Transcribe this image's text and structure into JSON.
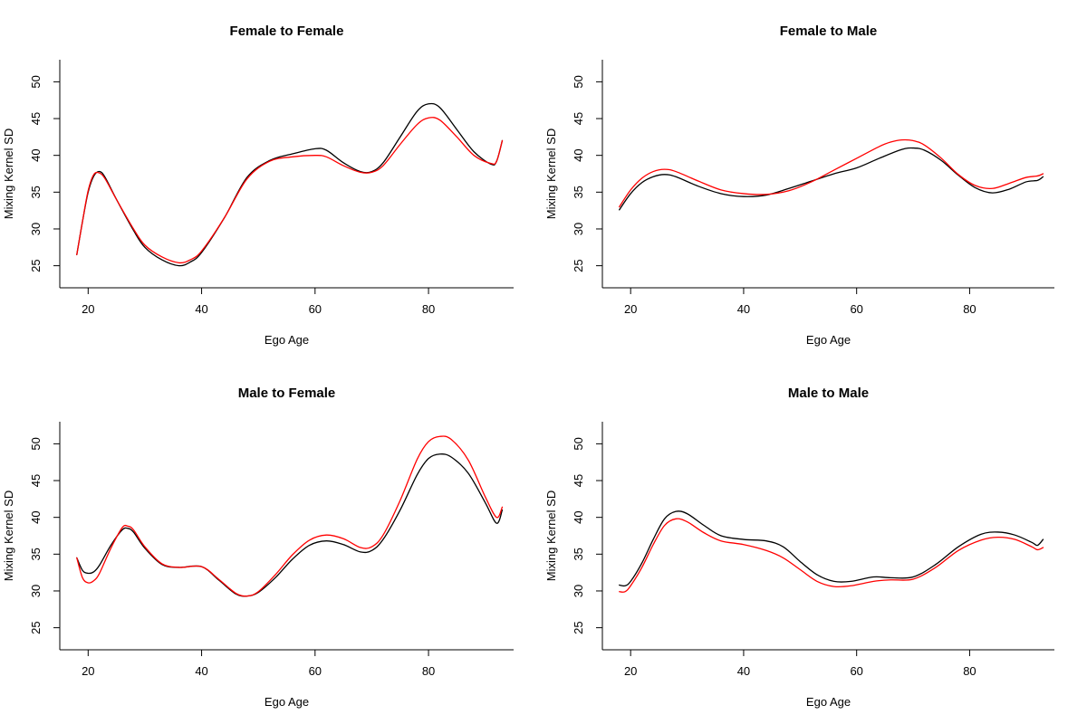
{
  "chart_data": [
    {
      "type": "line",
      "title": "Female to Female",
      "xlabel": "Ego Age",
      "ylabel": "Mixing Kernel SD",
      "xlim": [
        15,
        95
      ],
      "ylim": [
        22,
        53
      ],
      "xticks": [
        20,
        40,
        60,
        80
      ],
      "yticks": [
        25,
        30,
        35,
        40,
        45,
        50
      ],
      "series": [
        {
          "color": "#000000",
          "x": [
            18,
            19,
            20,
            21,
            22,
            23,
            25,
            28,
            30,
            33,
            36,
            38,
            40,
            44,
            48,
            52,
            56,
            60,
            62,
            65,
            68,
            70,
            72,
            75,
            78,
            80,
            82,
            85,
            88,
            91,
            92,
            93
          ],
          "y": [
            26.5,
            31,
            35,
            37.2,
            37.8,
            37.0,
            34.0,
            29.8,
            27.5,
            25.8,
            25.0,
            25.5,
            26.8,
            31.5,
            37.0,
            39.3,
            40.2,
            40.9,
            40.7,
            39.0,
            37.8,
            37.8,
            39.0,
            42.5,
            46.0,
            47.0,
            46.5,
            43.5,
            40.5,
            38.8,
            39.2,
            42.0
          ]
        },
        {
          "color": "#ff0000",
          "x": [
            18,
            19,
            20,
            21,
            22,
            23,
            25,
            28,
            30,
            33,
            36,
            38,
            40,
            44,
            48,
            52,
            56,
            60,
            62,
            65,
            68,
            70,
            72,
            75,
            78,
            80,
            82,
            85,
            88,
            91,
            92,
            93
          ],
          "y": [
            26.5,
            31,
            35.2,
            37.4,
            37.6,
            36.8,
            34.0,
            30.0,
            27.8,
            26.2,
            25.4,
            25.8,
            27.0,
            31.5,
            36.8,
            39.2,
            39.8,
            40.0,
            39.8,
            38.6,
            37.7,
            37.7,
            38.6,
            41.5,
            44.2,
            45.1,
            44.8,
            42.5,
            40.0,
            38.9,
            39.2,
            42.0
          ]
        }
      ]
    },
    {
      "type": "line",
      "title": "Female to Male",
      "xlabel": "Ego Age",
      "ylabel": "Mixing Kernel SD",
      "xlim": [
        15,
        95
      ],
      "ylim": [
        22,
        53
      ],
      "xticks": [
        20,
        40,
        60,
        80
      ],
      "yticks": [
        25,
        30,
        35,
        40,
        45,
        50
      ],
      "series": [
        {
          "color": "#000000",
          "x": [
            18,
            20,
            22,
            24,
            26,
            28,
            32,
            36,
            40,
            44,
            48,
            52,
            56,
            60,
            64,
            68,
            70,
            72,
            75,
            78,
            81,
            84,
            87,
            90,
            92,
            93
          ],
          "y": [
            32.6,
            34.8,
            36.3,
            37.1,
            37.4,
            37.1,
            35.8,
            34.8,
            34.4,
            34.6,
            35.5,
            36.5,
            37.5,
            38.3,
            39.6,
            40.8,
            41.0,
            40.7,
            39.3,
            37.3,
            35.6,
            34.9,
            35.4,
            36.4,
            36.6,
            37.1
          ]
        },
        {
          "color": "#ff0000",
          "x": [
            18,
            20,
            22,
            24,
            26,
            28,
            32,
            36,
            40,
            44,
            48,
            52,
            56,
            60,
            64,
            66,
            68,
            70,
            72,
            75,
            78,
            81,
            84,
            87,
            90,
            92,
            93
          ],
          "y": [
            33.0,
            35.3,
            36.9,
            37.8,
            38.1,
            37.8,
            36.5,
            35.3,
            34.8,
            34.7,
            35.2,
            36.4,
            38.0,
            39.6,
            41.2,
            41.8,
            42.1,
            42.0,
            41.4,
            39.6,
            37.4,
            35.9,
            35.5,
            36.2,
            37.0,
            37.2,
            37.5
          ]
        }
      ]
    },
    {
      "type": "line",
      "title": "Male to Female",
      "xlabel": "Ego Age",
      "ylabel": "Mixing Kernel SD",
      "xlim": [
        15,
        95
      ],
      "ylim": [
        22,
        53
      ],
      "xticks": [
        20,
        40,
        60,
        80
      ],
      "yticks": [
        25,
        30,
        35,
        40,
        45,
        50
      ],
      "series": [
        {
          "color": "#000000",
          "x": [
            18,
            19,
            20,
            21,
            22,
            24,
            26,
            27,
            28,
            30,
            33,
            36,
            40,
            43,
            46,
            48,
            50,
            53,
            56,
            59,
            62,
            65,
            68,
            70,
            72,
            75,
            78,
            80,
            82,
            84,
            87,
            90,
            92,
            93
          ],
          "y": [
            34.5,
            32.8,
            32.4,
            32.6,
            33.5,
            36.2,
            38.3,
            38.5,
            38.0,
            35.8,
            33.6,
            33.2,
            33.3,
            31.5,
            29.6,
            29.3,
            29.8,
            31.8,
            34.3,
            36.2,
            36.8,
            36.3,
            35.3,
            35.5,
            37.0,
            41.0,
            45.8,
            48.0,
            48.6,
            48.2,
            46.0,
            42.0,
            39.2,
            41.0
          ]
        },
        {
          "color": "#ff0000",
          "x": [
            18,
            19,
            20,
            21,
            22,
            24,
            26,
            27,
            28,
            30,
            33,
            36,
            40,
            43,
            46,
            48,
            50,
            53,
            56,
            59,
            62,
            65,
            68,
            70,
            72,
            75,
            78,
            80,
            82,
            84,
            87,
            90,
            92,
            93
          ],
          "y": [
            34.5,
            31.8,
            31.1,
            31.4,
            32.4,
            35.8,
            38.6,
            38.8,
            38.3,
            36.0,
            33.7,
            33.2,
            33.3,
            31.6,
            29.7,
            29.3,
            29.9,
            32.2,
            34.9,
            36.9,
            37.6,
            37.1,
            35.9,
            36.0,
            37.6,
            42.3,
            47.9,
            50.3,
            51.0,
            50.6,
            47.8,
            42.8,
            40.0,
            41.4
          ]
        }
      ]
    },
    {
      "type": "line",
      "title": "Male to Male",
      "xlabel": "Ego Age",
      "ylabel": "Mixing Kernel SD",
      "xlim": [
        15,
        95
      ],
      "ylim": [
        22,
        53
      ],
      "xticks": [
        20,
        40,
        60,
        80
      ],
      "yticks": [
        25,
        30,
        35,
        40,
        45,
        50
      ],
      "series": [
        {
          "color": "#000000",
          "x": [
            18,
            19,
            20,
            22,
            24,
            26,
            28,
            30,
            33,
            36,
            40,
            44,
            47,
            50,
            53,
            56,
            59,
            63,
            66,
            70,
            74,
            78,
            82,
            85,
            88,
            91,
            92,
            93
          ],
          "y": [
            30.8,
            30.7,
            31.3,
            33.8,
            37.0,
            39.8,
            40.8,
            40.5,
            38.9,
            37.5,
            37.0,
            36.8,
            36.0,
            34.0,
            32.2,
            31.3,
            31.3,
            31.9,
            31.8,
            31.9,
            33.6,
            36.0,
            37.7,
            38.0,
            37.6,
            36.6,
            36.2,
            37.0
          ]
        },
        {
          "color": "#ff0000",
          "x": [
            18,
            19,
            20,
            22,
            24,
            26,
            28,
            30,
            33,
            36,
            40,
            44,
            47,
            50,
            53,
            56,
            59,
            63,
            66,
            70,
            74,
            78,
            82,
            85,
            88,
            91,
            92,
            93
          ],
          "y": [
            29.9,
            29.9,
            30.7,
            33.2,
            36.3,
            38.9,
            39.8,
            39.4,
            37.9,
            36.8,
            36.3,
            35.5,
            34.5,
            32.9,
            31.3,
            30.6,
            30.7,
            31.3,
            31.5,
            31.6,
            33.2,
            35.5,
            36.9,
            37.3,
            37.0,
            36.0,
            35.6,
            35.9
          ]
        }
      ]
    }
  ]
}
